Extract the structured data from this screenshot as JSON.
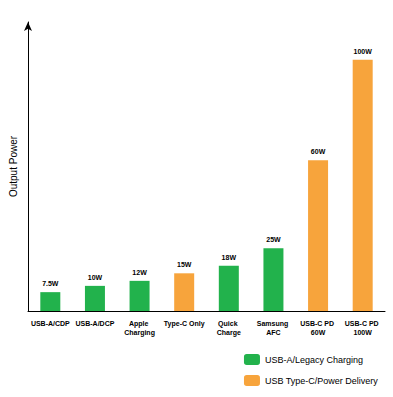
{
  "chart_data": {
    "type": "bar",
    "ylabel": "Output Power",
    "categories": [
      "USB-A/CDP",
      "USB-A/DCP",
      "Apple Charging",
      "Type-C Only",
      "Quick Charge",
      "Samsung AFC",
      "USB-C PD 60W",
      "USB-C PD 100W"
    ],
    "series": [
      {
        "name": "USB-A/Legacy Charging",
        "color": "#22b24c",
        "values": [
          7.5,
          10,
          12,
          null,
          18,
          25,
          null,
          null
        ],
        "value_labels": [
          "7.5W",
          "10W",
          "12W",
          null,
          "18W",
          "25W",
          null,
          null
        ]
      },
      {
        "name": "USB Type-C/Power Delivery",
        "color": "#f7a43c",
        "values": [
          null,
          null,
          null,
          15,
          null,
          null,
          60,
          100
        ],
        "value_labels": [
          null,
          null,
          null,
          "15W",
          null,
          null,
          "60W",
          "100W"
        ]
      }
    ],
    "ylim": [
      0,
      115
    ],
    "tick_labels": "x",
    "data_labels": true,
    "grid": false,
    "legend": "lower right"
  }
}
